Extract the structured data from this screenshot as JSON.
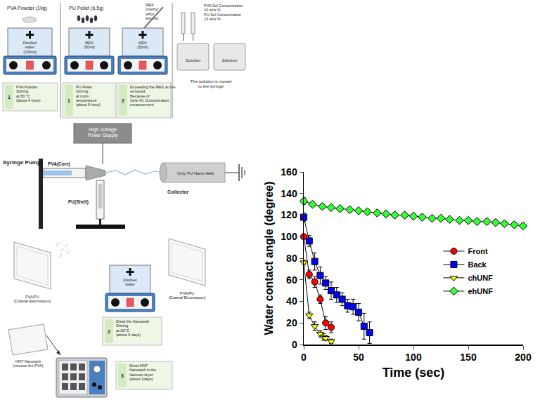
{
  "chart_data": {
    "type": "line",
    "x_label": "Time (sec)",
    "y_label": "Water contact angle (degree)",
    "xlim": [
      0,
      200
    ],
    "xticks": [
      0,
      50,
      100,
      150,
      200
    ],
    "ylim": [
      0,
      160
    ],
    "yticks": [
      0,
      20,
      40,
      60,
      80,
      100,
      120,
      140,
      160
    ],
    "grid": false,
    "series": [
      {
        "name": "Front",
        "color": "#ff0000",
        "marker": "circle",
        "x": [
          0,
          5,
          10,
          15,
          20,
          25
        ],
        "values": [
          100,
          65,
          58,
          42,
          20,
          16
        ],
        "errors": [
          2,
          4,
          5,
          4,
          6,
          5
        ]
      },
      {
        "name": "Back",
        "color": "#0000ff",
        "marker": "square",
        "x": [
          0,
          5,
          10,
          15,
          20,
          25,
          30,
          35,
          40,
          45,
          50,
          55,
          60
        ],
        "values": [
          118,
          96,
          77,
          64,
          57,
          50,
          46,
          42,
          36,
          35,
          30,
          17,
          11
        ],
        "errors": [
          4,
          5,
          8,
          8,
          6,
          8,
          7,
          6,
          6,
          7,
          8,
          12,
          10
        ]
      },
      {
        "name": "chUNF",
        "color": "#ffff00",
        "marker": "triangle-down",
        "x": [
          0,
          5,
          10,
          15,
          18,
          20,
          25
        ],
        "values": [
          76,
          27,
          17,
          10,
          7,
          6,
          3
        ],
        "errors": [
          2,
          3,
          4,
          3,
          3,
          2,
          2
        ]
      },
      {
        "name": "ehUNF",
        "color": "#33ff33",
        "marker": "diamond",
        "x": [
          0,
          8,
          17,
          25,
          33,
          42,
          50,
          58,
          67,
          75,
          83,
          92,
          100,
          108,
          117,
          125,
          133,
          142,
          150,
          158,
          167,
          175,
          183,
          192,
          200
        ],
        "values": [
          133,
          130,
          128,
          127,
          126,
          125,
          124,
          123,
          122,
          121,
          120,
          120,
          119,
          118,
          117,
          117,
          116,
          115,
          115,
          114,
          114,
          113,
          112,
          111,
          110
        ],
        "errors": [
          3,
          2,
          2,
          2,
          2,
          2,
          2,
          2,
          2,
          2,
          2,
          2,
          2,
          2,
          2,
          2,
          2,
          2,
          2,
          2,
          2,
          2,
          2,
          2,
          2
        ]
      }
    ]
  },
  "diagram": {
    "pva_prep": {
      "material": "PVA Powder (10g)",
      "beaker": [
        "Distilled",
        "water",
        "(100ml)"
      ],
      "step": {
        "number": 1,
        "text": [
          "PVA Powder",
          "Stirring",
          "at 80 °C",
          "(about 4 hour)"
        ]
      }
    },
    "pu_prep": {
      "material": "PU Pellet (6.5g)",
      "solvent": [
        "MEK",
        "(methyl",
        "ethyl",
        "ketone)"
      ],
      "beakers": [
        [
          "MEK",
          "(50ml)"
        ],
        [
          "MEK",
          "(50ml)"
        ]
      ],
      "steps": [
        {
          "number": 1,
          "text": [
            "PU Pellet",
            "Stirring",
            "at room",
            "temperature",
            "(about 6 hour)"
          ]
        },
        {
          "number": 2,
          "text": [
            "Exceeding the MEK at line",
            "removed",
            "Because of",
            "(w/w %) Concentration",
            "measurement"
          ]
        }
      ]
    },
    "solutions": {
      "concentrations": [
        "PVA Sol Concentration",
        "10 w/w %",
        "PU Sol Concentration",
        "13 w/w %"
      ],
      "containers": [
        "Solution",
        "Solution"
      ],
      "note": [
        "The solution is moved",
        "to the syringe"
      ]
    },
    "electrospinning": {
      "power": [
        "High Voltage",
        "Power Supply"
      ],
      "pump": "Syringe Pump",
      "core": "PVA(Core)",
      "shell": "PU(Shell)",
      "web": "Only PU Nano Web",
      "collector": "Collector"
    },
    "post": {
      "webs": [
        [
          "PVA/PU",
          "(Coaxial Electrospun)"
        ],
        [
          "PVA/PU",
          "(Coaxial Electrospun)"
        ]
      ],
      "beaker": [
        "Distilled",
        "water"
      ],
      "steps": [
        {
          "number": 2,
          "text": [
            "Dried the Nanoweb",
            "Stirring",
            "at 30°C",
            "(about 3 days)"
          ]
        },
        {
          "number": 3,
          "text": [
            "Dried HNT",
            "Nanoweb in the",
            "Vacuum dryer",
            "(about 1days)"
          ]
        }
      ],
      "hnt": [
        "HNT Nanoweb",
        "(remove the PVA)"
      ]
    }
  }
}
